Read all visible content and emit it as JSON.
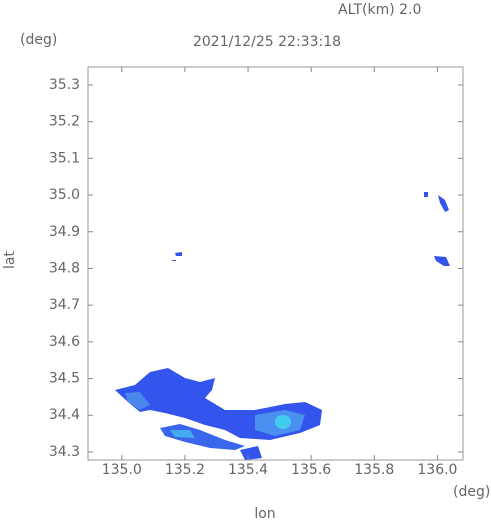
{
  "chart_data": {
    "type": "radar-map",
    "title": "2021/12/25 22:33:18",
    "altitude_label": "ALT(km) 2.0",
    "x_label": "lon",
    "y_label": "lat",
    "x_unit": "(deg)",
    "y_unit": "(deg)",
    "xlim": [
      134.893,
      136.081
    ],
    "ylim": [
      34.278,
      35.349
    ],
    "xticks": [
      {
        "value": 135.0,
        "label": "135.0"
      },
      135.2,
      135.4,
      135.6,
      135.8,
      {
        "value": 136.0,
        "label": "136.0"
      }
    ],
    "yticks": [
      34.3,
      34.4,
      34.5,
      34.6,
      34.7,
      34.8,
      34.9,
      {
        "value": 35.0,
        "label": "35.0"
      },
      35.1,
      35.2,
      35.3
    ]
  }
}
